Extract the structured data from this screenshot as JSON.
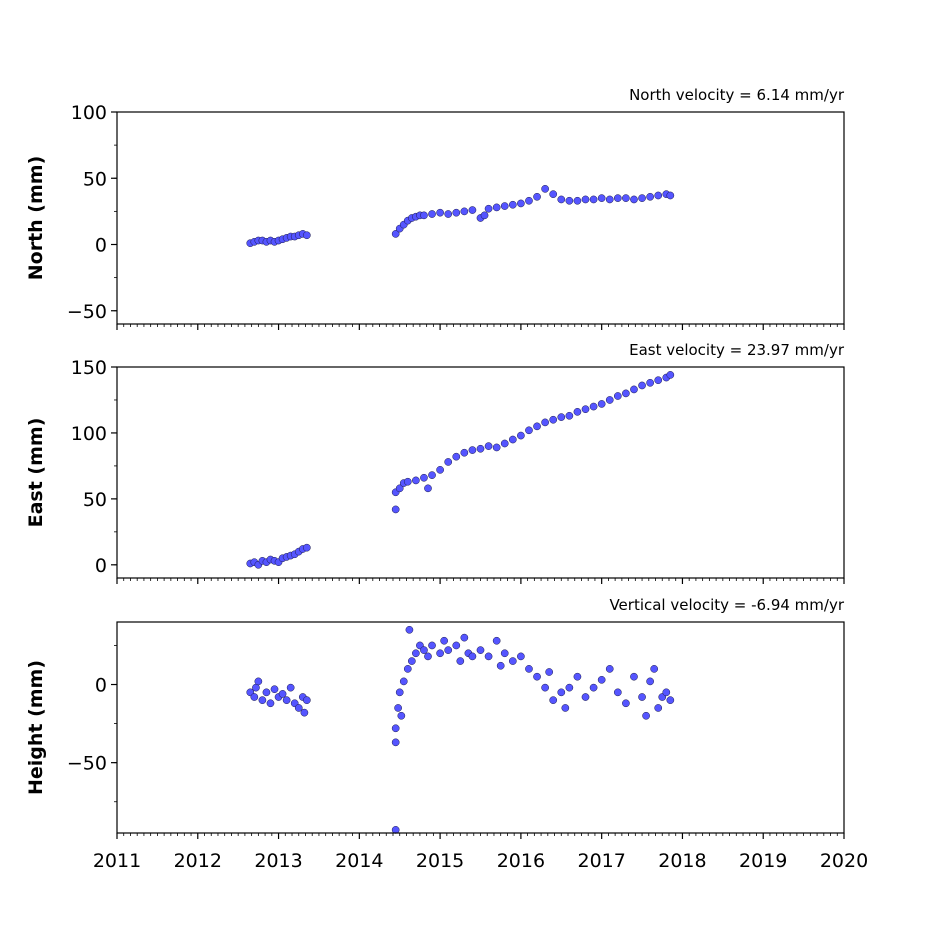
{
  "chart_data": [
    {
      "type": "scatter",
      "ylabel": "North (mm)",
      "annotation": "North velocity = 6.14 mm/yr",
      "xlim": [
        2011,
        2020
      ],
      "ylim": [
        -60,
        100
      ],
      "yticks": [
        -50,
        0,
        50,
        100
      ],
      "ytick_labels": [
        "−50",
        "0",
        "50",
        "100"
      ],
      "xticks": [
        2011,
        2012,
        2013,
        2014,
        2015,
        2016,
        2017,
        2018,
        2019,
        2020
      ],
      "xtick_labels": [
        "",
        "",
        "",
        "",
        "",
        "",
        "",
        "",
        "",
        ""
      ],
      "point_color": "#5555ff",
      "x": [
        2012.65,
        2012.7,
        2012.75,
        2012.8,
        2012.85,
        2012.9,
        2012.95,
        2013.0,
        2013.05,
        2013.1,
        2013.15,
        2013.2,
        2013.25,
        2013.3,
        2013.35,
        2014.45,
        2014.5,
        2014.55,
        2014.6,
        2014.65,
        2014.7,
        2014.75,
        2014.8,
        2014.9,
        2015.0,
        2015.1,
        2015.2,
        2015.3,
        2015.4,
        2015.5,
        2015.55,
        2015.6,
        2015.7,
        2015.8,
        2015.9,
        2016.0,
        2016.1,
        2016.2,
        2016.3,
        2016.4,
        2016.5,
        2016.6,
        2016.7,
        2016.8,
        2016.9,
        2017.0,
        2017.1,
        2017.2,
        2017.3,
        2017.4,
        2017.5,
        2017.6,
        2017.7,
        2017.8,
        2017.85
      ],
      "y": [
        1,
        2,
        3,
        3,
        2,
        3,
        2,
        3,
        4,
        5,
        6,
        6,
        7,
        8,
        7,
        8,
        12,
        15,
        18,
        20,
        21,
        22,
        22,
        23,
        24,
        23,
        24,
        25,
        26,
        20,
        22,
        27,
        28,
        29,
        30,
        31,
        33,
        36,
        42,
        38,
        34,
        33,
        33,
        34,
        34,
        35,
        34,
        35,
        35,
        34,
        35,
        36,
        37,
        38,
        37
      ]
    },
    {
      "type": "scatter",
      "ylabel": "East (mm)",
      "annotation": "East velocity = 23.97 mm/yr",
      "xlim": [
        2011,
        2020
      ],
      "ylim": [
        -10,
        150
      ],
      "yticks": [
        0,
        50,
        100,
        150
      ],
      "ytick_labels": [
        "0",
        "50",
        "100",
        "150"
      ],
      "xticks": [
        2011,
        2012,
        2013,
        2014,
        2015,
        2016,
        2017,
        2018,
        2019,
        2020
      ],
      "xtick_labels": [
        "",
        "",
        "",
        "",
        "",
        "",
        "",
        "",
        "",
        ""
      ],
      "point_color": "#5555ff",
      "x": [
        2012.65,
        2012.7,
        2012.75,
        2012.8,
        2012.85,
        2012.9,
        2012.95,
        2013.0,
        2013.05,
        2013.1,
        2013.15,
        2013.2,
        2013.25,
        2013.3,
        2013.35,
        2014.45,
        2014.45,
        2014.5,
        2014.55,
        2014.6,
        2014.7,
        2014.8,
        2014.85,
        2014.9,
        2015.0,
        2015.1,
        2015.2,
        2015.3,
        2015.4,
        2015.5,
        2015.6,
        2015.7,
        2015.8,
        2015.9,
        2016.0,
        2016.1,
        2016.2,
        2016.3,
        2016.4,
        2016.5,
        2016.6,
        2016.7,
        2016.8,
        2016.9,
        2017.0,
        2017.1,
        2017.2,
        2017.3,
        2017.4,
        2017.5,
        2017.6,
        2017.7,
        2017.8,
        2017.85
      ],
      "y": [
        1,
        2,
        0,
        3,
        2,
        4,
        3,
        2,
        5,
        6,
        7,
        8,
        10,
        12,
        13,
        42,
        55,
        58,
        62,
        63,
        64,
        66,
        58,
        68,
        72,
        78,
        82,
        85,
        87,
        88,
        90,
        89,
        92,
        95,
        98,
        102,
        105,
        108,
        110,
        112,
        113,
        116,
        118,
        120,
        122,
        125,
        128,
        130,
        133,
        136,
        138,
        140,
        142,
        144
      ]
    },
    {
      "type": "scatter",
      "ylabel": "Height (mm)",
      "annotation": "Vertical velocity = -6.94 mm/yr",
      "xlim": [
        2011,
        2020
      ],
      "ylim": [
        -95,
        40
      ],
      "yticks": [
        -50,
        0
      ],
      "ytick_labels": [
        "−50",
        "0"
      ],
      "xticks": [
        2011,
        2012,
        2013,
        2014,
        2015,
        2016,
        2017,
        2018,
        2019,
        2020
      ],
      "xtick_labels": [
        "2011",
        "2012",
        "2013",
        "2014",
        "2015",
        "2016",
        "2017",
        "2018",
        "2019",
        "2020"
      ],
      "point_color": "#5555ff",
      "x": [
        2012.65,
        2012.7,
        2012.72,
        2012.75,
        2012.8,
        2012.85,
        2012.9,
        2012.95,
        2013.0,
        2013.05,
        2013.1,
        2013.15,
        2013.2,
        2013.25,
        2013.3,
        2013.32,
        2013.35,
        2014.45,
        2014.45,
        2014.45,
        2014.48,
        2014.5,
        2014.52,
        2014.55,
        2014.6,
        2014.62,
        2014.65,
        2014.7,
        2014.75,
        2014.8,
        2014.85,
        2014.9,
        2015.0,
        2015.05,
        2015.1,
        2015.2,
        2015.25,
        2015.3,
        2015.35,
        2015.4,
        2015.5,
        2015.6,
        2015.7,
        2015.75,
        2015.8,
        2015.9,
        2016.0,
        2016.1,
        2016.2,
        2016.3,
        2016.35,
        2016.4,
        2016.5,
        2016.55,
        2016.6,
        2016.7,
        2016.8,
        2016.9,
        2017.0,
        2017.1,
        2017.2,
        2017.3,
        2017.4,
        2017.5,
        2017.55,
        2017.6,
        2017.65,
        2017.7,
        2017.75,
        2017.8,
        2017.85
      ],
      "y": [
        -5,
        -8,
        -2,
        2,
        -10,
        -5,
        -12,
        -3,
        -8,
        -6,
        -10,
        -2,
        -12,
        -15,
        -8,
        -18,
        -10,
        -93,
        -37,
        -28,
        -15,
        -5,
        -20,
        2,
        10,
        35,
        15,
        20,
        25,
        22,
        18,
        25,
        20,
        28,
        22,
        25,
        15,
        30,
        20,
        18,
        22,
        18,
        28,
        12,
        20,
        15,
        18,
        10,
        5,
        -2,
        8,
        -10,
        -5,
        -15,
        -2,
        5,
        -8,
        -2,
        3,
        10,
        -5,
        -12,
        5,
        -8,
        -20,
        2,
        10,
        -15,
        -8,
        -5,
        -10
      ]
    }
  ]
}
